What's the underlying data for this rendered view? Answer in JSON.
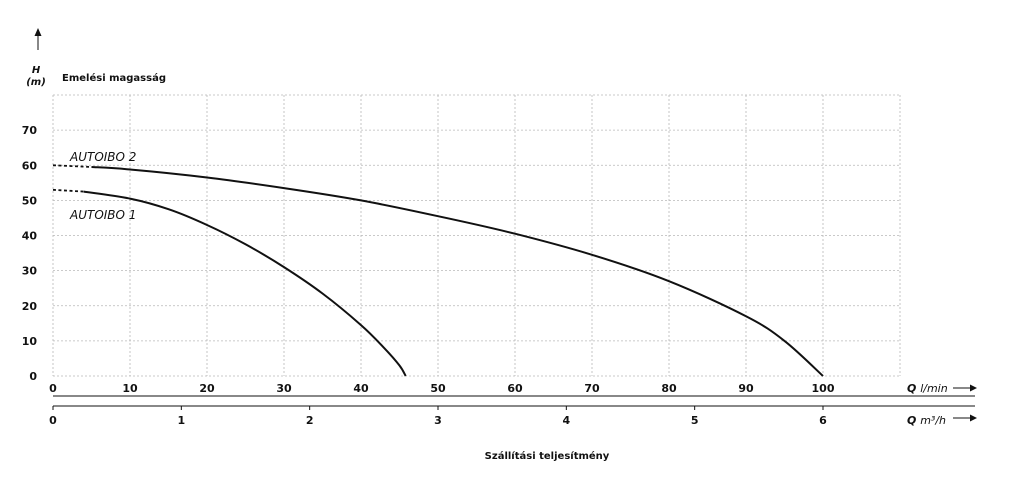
{
  "chart_data": {
    "type": "line",
    "ylabel_symbol": "H",
    "ylabel_unit": "(m)",
    "ylabel": "Emelési magasság",
    "xlabel": "Szállítási teljesítmény",
    "x_axis_primary": {
      "symbol": "Q",
      "unit": "l/min",
      "ticks": [
        "0",
        "10",
        "20",
        "30",
        "40",
        "50",
        "60",
        "70",
        "80",
        "90",
        "100"
      ],
      "range": [
        0,
        110
      ]
    },
    "x_axis_secondary": {
      "symbol": "Q",
      "unit": "m³/h",
      "ticks": [
        "0",
        "1",
        "2",
        "3",
        "4",
        "5",
        "6"
      ]
    },
    "y_axis": {
      "ticks": [
        "0",
        "10",
        "20",
        "30",
        "40",
        "50",
        "60",
        "70"
      ],
      "range": [
        0,
        80
      ]
    },
    "series": [
      {
        "name": "AUTOIBO 2",
        "dashed_until": 5,
        "points": [
          [
            0,
            60
          ],
          [
            5,
            59.5
          ],
          [
            10,
            58.8
          ],
          [
            20,
            56.5
          ],
          [
            30,
            53.5
          ],
          [
            40,
            50
          ],
          [
            50,
            45.5
          ],
          [
            60,
            40.5
          ],
          [
            70,
            34.5
          ],
          [
            80,
            27
          ],
          [
            90,
            17
          ],
          [
            95,
            10
          ],
          [
            100,
            0
          ]
        ]
      },
      {
        "name": "AUTOIBO 1",
        "dashed_until": 4,
        "points": [
          [
            0,
            53
          ],
          [
            4,
            52.5
          ],
          [
            10,
            50.5
          ],
          [
            15,
            47.5
          ],
          [
            20,
            43
          ],
          [
            25,
            37.5
          ],
          [
            30,
            31
          ],
          [
            35,
            23.5
          ],
          [
            40,
            14.5
          ],
          [
            43,
            8
          ],
          [
            45,
            3
          ],
          [
            45.8,
            0
          ]
        ]
      }
    ],
    "grid": true
  }
}
